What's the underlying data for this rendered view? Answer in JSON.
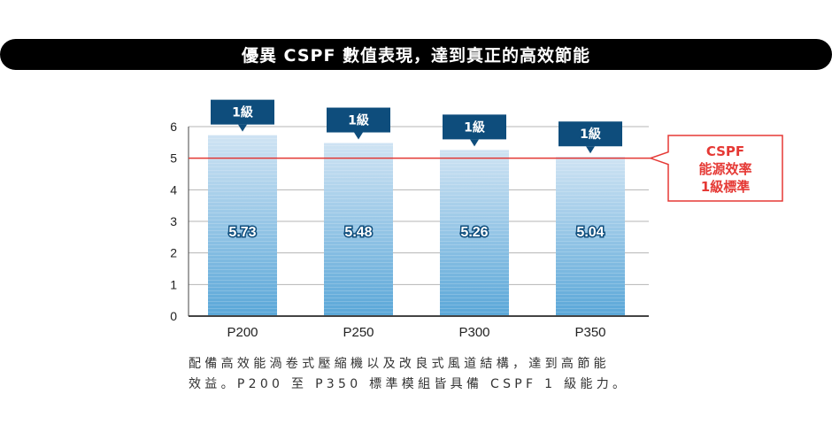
{
  "header": {
    "title": "優異 CSPF 數值表現，達到真正的高效節能"
  },
  "chart_data": {
    "type": "bar",
    "categories": [
      "P200",
      "P250",
      "P300",
      "P350"
    ],
    "values": [
      5.73,
      5.48,
      5.26,
      5.04
    ],
    "value_labels": [
      "5.73",
      "5.48",
      "5.26",
      "5.04"
    ],
    "badges": [
      "1級",
      "1級",
      "1級",
      "1級"
    ],
    "ylim": [
      0,
      6
    ],
    "yticks": [
      0,
      1,
      2,
      3,
      4,
      5,
      6
    ],
    "grid": true,
    "bar_color_top": "#cfe3f3",
    "bar_color_bottom": "#5aa7d8",
    "badge_color": "#0e4d7c",
    "reference_line": {
      "value": 5,
      "color": "#e53935",
      "label_lines": [
        "CSPF",
        "能源效率",
        "1級標準"
      ]
    }
  },
  "caption": {
    "lines": [
      "配備高效能渦卷式壓縮機以及改良式風道結構，達到高節能",
      "效益。P200 至 P350 標準模組皆具備 CSPF 1 級能力。"
    ]
  }
}
